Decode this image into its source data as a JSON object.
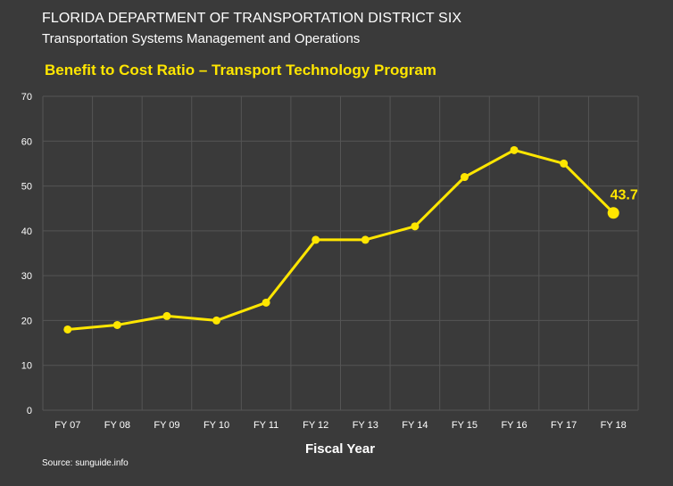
{
  "header": {
    "line1": "FLORIDA DEPARTMENT OF TRANSPORTATION DISTRICT SIX",
    "line2": "Transportation Systems Management and Operations"
  },
  "source": "Source: sunguide.info",
  "colors": {
    "background": "#3a3a3a",
    "grid": "#555555",
    "line": "#ffe600",
    "title": "#ffe600",
    "text": "#ffffff"
  },
  "chart_data": {
    "type": "line",
    "title": "Benefit to Cost Ratio – Transport Technology Program",
    "xlabel": "Fiscal Year",
    "ylabel": "",
    "ylim": [
      0,
      70
    ],
    "yticks": [
      0,
      10,
      20,
      30,
      40,
      50,
      60,
      70
    ],
    "grid": true,
    "categories": [
      "FY 07",
      "FY 08",
      "FY 09",
      "FY 10",
      "FY 11",
      "FY 12",
      "FY 13",
      "FY 14",
      "FY 15",
      "FY 16",
      "FY 17",
      "FY 18"
    ],
    "series": [
      {
        "values": [
          18,
          19,
          21,
          20,
          24,
          38,
          38,
          41,
          52,
          58,
          55,
          44
        ]
      }
    ],
    "annotations": [
      {
        "category": "FY 18",
        "text": "43.7"
      }
    ]
  }
}
